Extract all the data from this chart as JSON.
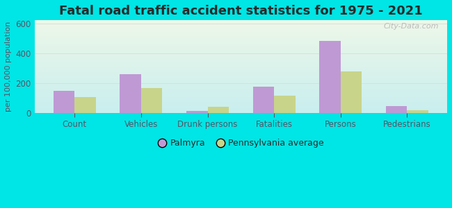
{
  "title": "Fatal road traffic accident statistics for 1975 - 2021",
  "categories": [
    "Count",
    "Vehicles",
    "Drunk persons",
    "Fatalities",
    "Persons",
    "Pedestrians"
  ],
  "palmyra_values": [
    148,
    262,
    15,
    175,
    480,
    47
  ],
  "pa_avg_values": [
    105,
    168,
    42,
    118,
    278,
    20
  ],
  "palmyra_color": "#bf99d4",
  "pa_avg_color": "#c8d48a",
  "ylabel": "per 100,000 population",
  "ylim": [
    0,
    620
  ],
  "yticks": [
    0,
    200,
    400,
    600
  ],
  "bar_width": 0.32,
  "background_outer": "#00e5e5",
  "background_inner_top": "#edf7e8",
  "background_inner_bottom": "#c8eeee",
  "title_fontsize": 13,
  "axis_label_fontsize": 8,
  "tick_fontsize": 8.5,
  "legend_label1": "Palmyra",
  "legend_label2": "Pennsylvania average",
  "watermark": "City-Data.com",
  "title_color": "#2a2a2a",
  "tick_color": "#555566",
  "grid_color": "#dddddd"
}
